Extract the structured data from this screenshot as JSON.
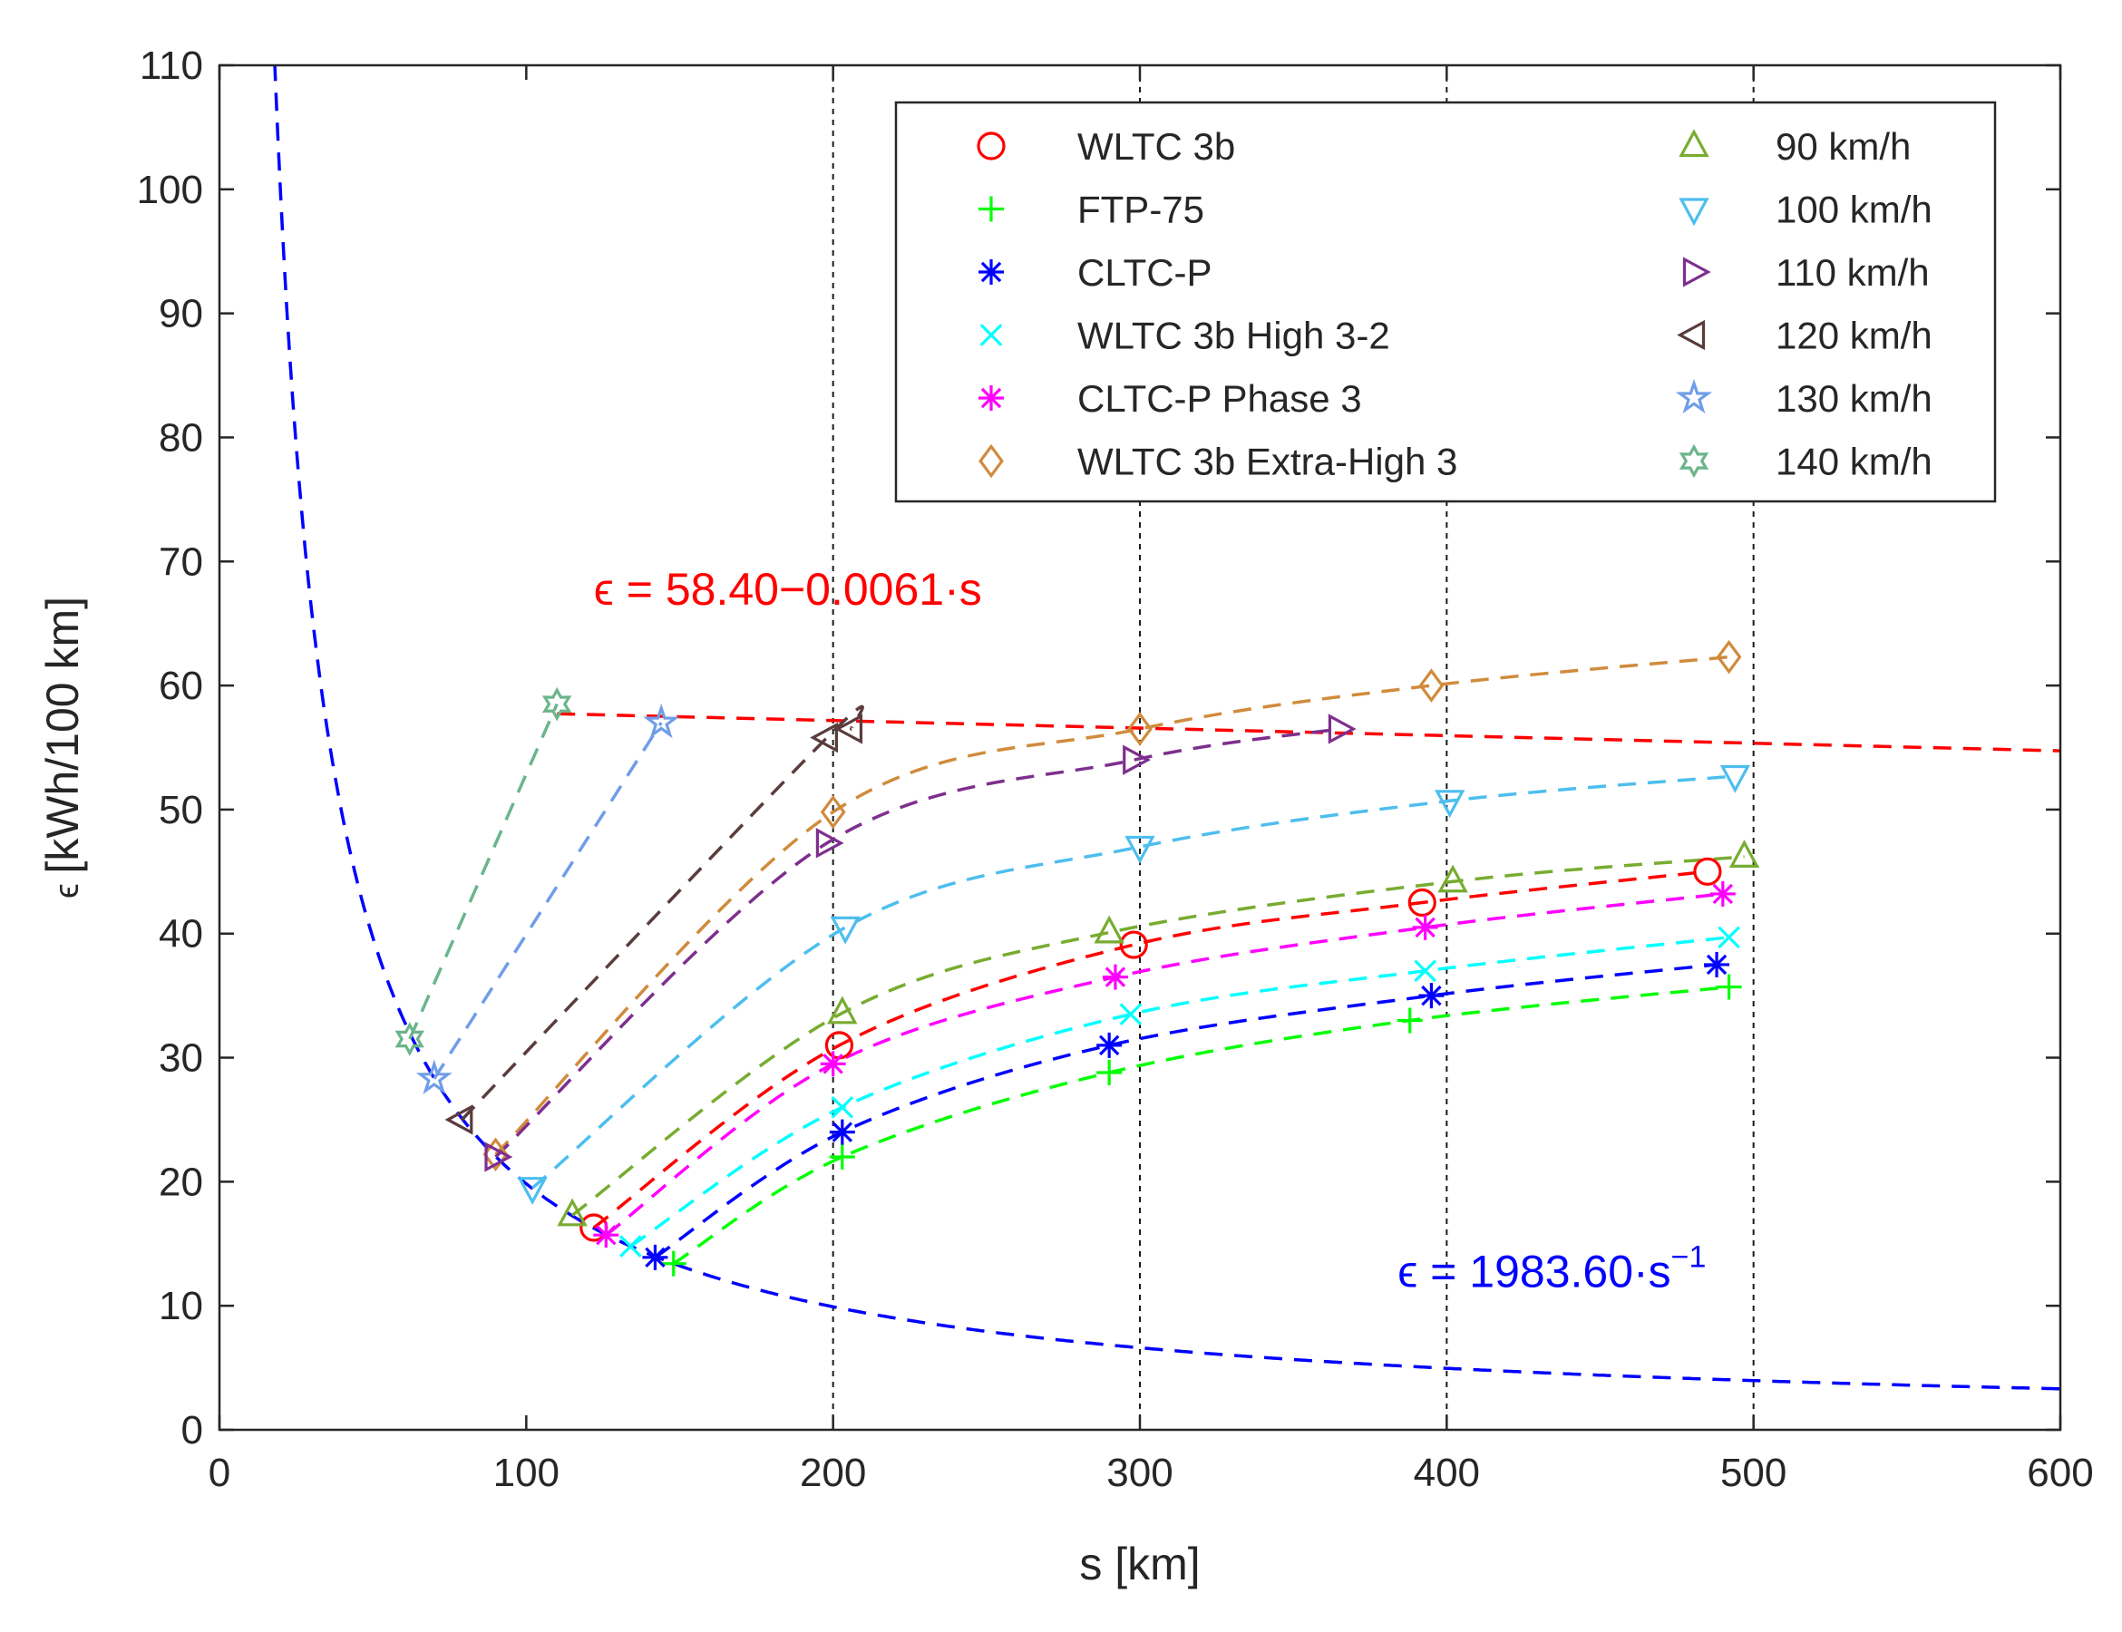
{
  "chart_data": {
    "type": "line",
    "title": "",
    "xlabel": "s [km]",
    "ylabel_symbol": "ϵ",
    "ylabel": "[kWh/100 km]",
    "xlim": [
      0,
      600
    ],
    "ylim": [
      0,
      110
    ],
    "xticks": [
      0,
      100,
      200,
      300,
      400,
      500,
      600
    ],
    "yticks": [
      0,
      10,
      20,
      30,
      40,
      50,
      60,
      70,
      80,
      90,
      100,
      110
    ],
    "grid": false,
    "vertical_reference_lines": [
      200,
      300,
      400,
      500
    ],
    "legend_position": "top-right",
    "fits": [
      {
        "name": "hyperbola",
        "formula": "ϵ = 1983.60·s^-1",
        "a": 1983.6,
        "x_range": [
          18,
          600
        ],
        "color": "#0000ff"
      },
      {
        "name": "linear",
        "formula": "ϵ = 58.40−0.0061·s",
        "a": 58.4,
        "b": -0.0061,
        "x_range": [
          110,
          600
        ],
        "color": "#ff0000"
      }
    ],
    "annotations": [
      {
        "id": "linear",
        "text": "ϵ = 58.40−0.0061·s",
        "x": 122,
        "y": 66.5,
        "color": "#ff0000"
      },
      {
        "id": "hyperbola",
        "prefix": "ϵ = 1983.60·s",
        "sup": "−1",
        "x": 384,
        "y": 11.5,
        "color": "#0000ff"
      }
    ],
    "series": [
      {
        "name": "WLTC 3b",
        "marker": "circle",
        "color": "#ff0000",
        "x": [
          122,
          202,
          298,
          392,
          485
        ],
        "y": [
          16.3,
          31.0,
          39.1,
          42.5,
          45.0
        ]
      },
      {
        "name": "FTP-75",
        "marker": "plus",
        "color": "#00ff00",
        "x": [
          148,
          203,
          290,
          388,
          492
        ],
        "y": [
          13.4,
          22.0,
          28.8,
          33.0,
          35.7
        ]
      },
      {
        "name": "CLTC-P",
        "marker": "asterisk",
        "color": "#0000ff",
        "x": [
          142,
          203,
          290,
          395,
          488
        ],
        "y": [
          13.9,
          24.0,
          31.0,
          35.0,
          37.5
        ]
      },
      {
        "name": "WLTC 3b High 3-2",
        "marker": "x",
        "color": "#00ffff",
        "x": [
          134,
          203,
          297,
          393,
          492
        ],
        "y": [
          14.8,
          26.0,
          33.5,
          37.0,
          39.7
        ]
      },
      {
        "name": "CLTC-P Phase 3",
        "marker": "asterisk",
        "color": "#ff00ff",
        "x": [
          126,
          200,
          292,
          393,
          490
        ],
        "y": [
          15.7,
          29.5,
          36.5,
          40.5,
          43.2
        ]
      },
      {
        "name": "WLTC 3b Extra-High 3",
        "marker": "diamond",
        "color": "#d08b3c",
        "x": [
          90,
          200,
          300,
          395,
          492
        ],
        "y": [
          22.2,
          49.8,
          56.5,
          60.0,
          62.3
        ]
      },
      {
        "name": "90 km/h",
        "marker": "triangle-up",
        "color": "#77ac30",
        "x": [
          115,
          203,
          290,
          402,
          497
        ],
        "y": [
          17.3,
          33.6,
          40.1,
          44.2,
          46.2
        ]
      },
      {
        "name": "100 km/h",
        "marker": "triangle-down",
        "color": "#4dbeee",
        "x": [
          102,
          204,
          300,
          401,
          494
        ],
        "y": [
          19.5,
          40.5,
          47.0,
          50.7,
          52.7
        ]
      },
      {
        "name": "110 km/h",
        "marker": "triangle-right",
        "color": "#7e2f8e",
        "x": [
          90,
          198,
          298,
          365
        ],
        "y": [
          22.0,
          47.3,
          54.0,
          56.5
        ]
      },
      {
        "name": "120 km/h",
        "marker": "triangle-left",
        "color": "#5a3c3c",
        "x": [
          79,
          198,
          206
        ],
        "y": [
          25.0,
          55.8,
          56.5
        ]
      },
      {
        "name": "130 km/h",
        "marker": "star",
        "color": "#6f9ee8",
        "x": [
          70,
          144
        ],
        "y": [
          28.3,
          57.0
        ]
      },
      {
        "name": "140 km/h",
        "marker": "hexagram",
        "color": "#6bb58c",
        "x": [
          62,
          110
        ],
        "y": [
          31.5,
          58.5
        ]
      }
    ]
  }
}
